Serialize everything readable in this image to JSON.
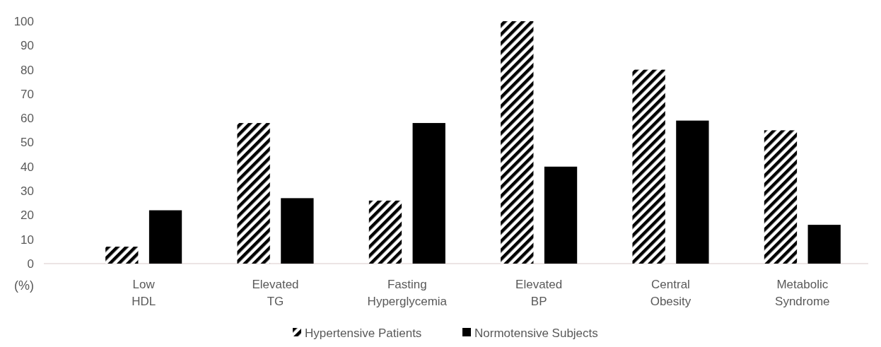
{
  "chart_data": {
    "type": "bar",
    "ylabel": "(%)",
    "categories": [
      "Low HDL",
      "Elevated TG",
      "Fasting Hyperglycemia",
      "Elevated BP",
      "Central Obesity",
      "Metabolic Syndrome"
    ],
    "series": [
      {
        "name": "Hypertensive Patients",
        "color": "#000000",
        "values": [
          7,
          58,
          26,
          100,
          80,
          55
        ]
      },
      {
        "name": "Normotensive Subjects",
        "color": "#000000",
        "values": [
          22,
          27,
          58,
          40,
          59,
          16
        ]
      }
    ],
    "ylim": [
      0,
      100
    ],
    "yticks": [
      0,
      10,
      20,
      30,
      40,
      50,
      60,
      70,
      80,
      90,
      100
    ],
    "grid": false,
    "legend": "bottom"
  }
}
